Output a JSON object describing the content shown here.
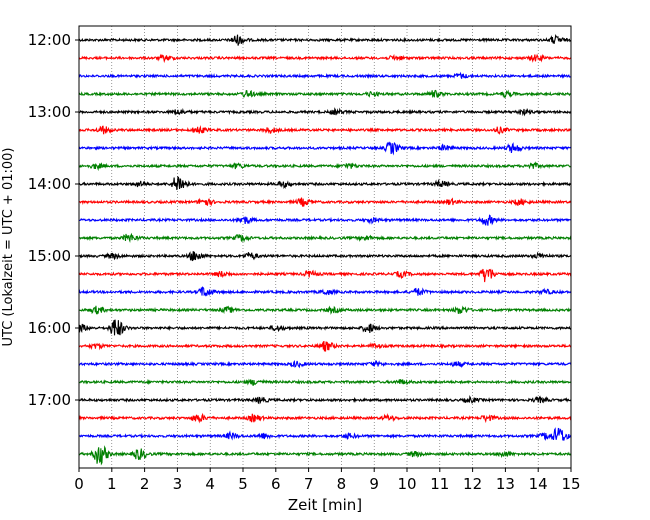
{
  "chart_data": {
    "type": "line",
    "title": "",
    "xlabel": "Zeit  [min]",
    "ylabel": "UTC (Lokalzeit = UTC + 01:00)",
    "xlim": [
      0,
      15
    ],
    "x_ticks": [
      "0",
      "1",
      "2",
      "3",
      "4",
      "5",
      "6",
      "7",
      "8",
      "9",
      "10",
      "11",
      "12",
      "13",
      "14",
      "15"
    ],
    "y_ticks": [
      "12:00",
      "13:00",
      "14:00",
      "15:00",
      "16:00",
      "17:00"
    ],
    "grid": "vertical dotted",
    "trace_interval_minutes": 15,
    "trace_colors_cycle": [
      "#000000",
      "#ff0000",
      "#0000ff",
      "#008000"
    ],
    "traces": [
      {
        "start": "12:00",
        "events": [
          [
            4.8,
            3.2
          ],
          [
            14.5,
            2.4
          ]
        ]
      },
      {
        "start": "12:15",
        "events": [
          [
            2.6,
            1.5
          ],
          [
            9.6,
            1.3
          ],
          [
            13.9,
            1.8
          ]
        ]
      },
      {
        "start": "12:30",
        "events": [
          [
            11.6,
            1.4
          ]
        ]
      },
      {
        "start": "12:45",
        "events": [
          [
            5.1,
            2.0
          ],
          [
            8.9,
            1.2
          ],
          [
            10.8,
            2.0
          ],
          [
            13.0,
            1.5
          ]
        ]
      },
      {
        "start": "13:00",
        "events": [
          [
            3.0,
            1.5
          ],
          [
            7.8,
            1.4
          ],
          [
            13.5,
            1.5
          ]
        ]
      },
      {
        "start": "13:15",
        "events": [
          [
            0.7,
            2.2
          ],
          [
            3.6,
            2.2
          ],
          [
            5.8,
            1.6
          ],
          [
            12.8,
            1.7
          ]
        ]
      },
      {
        "start": "13:30",
        "events": [
          [
            9.5,
            3.8
          ],
          [
            13.2,
            2.7
          ],
          [
            11.1,
            1.5
          ]
        ]
      },
      {
        "start": "13:45",
        "events": [
          [
            0.5,
            1.5
          ],
          [
            4.8,
            1.4
          ],
          [
            8.2,
            1.4
          ],
          [
            13.8,
            1.6
          ]
        ]
      },
      {
        "start": "14:00",
        "events": [
          [
            3.0,
            6.0
          ],
          [
            1.8,
            1.6
          ],
          [
            6.2,
            1.7
          ],
          [
            11.0,
            1.8
          ]
        ]
      },
      {
        "start": "14:15",
        "events": [
          [
            3.8,
            2.4
          ],
          [
            6.8,
            2.4
          ],
          [
            11.3,
            1.6
          ],
          [
            13.4,
            1.8
          ]
        ]
      },
      {
        "start": "14:30",
        "events": [
          [
            5.0,
            2.5
          ],
          [
            12.4,
            3.3
          ],
          [
            8.9,
            1.3
          ]
        ]
      },
      {
        "start": "14:45",
        "events": [
          [
            1.5,
            2.5
          ],
          [
            4.9,
            2.0
          ],
          [
            8.7,
            1.4
          ]
        ]
      },
      {
        "start": "15:00",
        "events": [
          [
            3.5,
            3.2
          ],
          [
            5.2,
            2.0
          ],
          [
            1.0,
            1.5
          ],
          [
            14.0,
            1.5
          ]
        ]
      },
      {
        "start": "15:15",
        "events": [
          [
            12.4,
            5.0
          ],
          [
            7.0,
            1.8
          ],
          [
            9.8,
            1.8
          ],
          [
            4.3,
            1.6
          ]
        ]
      },
      {
        "start": "15:30",
        "events": [
          [
            3.8,
            3.2
          ],
          [
            10.3,
            2.2
          ],
          [
            7.5,
            1.5
          ],
          [
            14.2,
            1.3
          ]
        ]
      },
      {
        "start": "15:45",
        "events": [
          [
            0.5,
            2.2
          ],
          [
            4.5,
            1.6
          ],
          [
            11.6,
            2.2
          ],
          [
            7.7,
            1.4
          ]
        ]
      },
      {
        "start": "16:00",
        "events": [
          [
            1.1,
            6.5
          ],
          [
            8.8,
            3.0
          ],
          [
            0.0,
            2.5
          ],
          [
            6.0,
            1.5
          ]
        ]
      },
      {
        "start": "16:15",
        "events": [
          [
            7.5,
            3.0
          ],
          [
            0.5,
            1.4
          ],
          [
            9.0,
            1.2
          ]
        ]
      },
      {
        "start": "16:30",
        "events": [
          [
            6.6,
            1.6
          ],
          [
            9.0,
            1.4
          ],
          [
            11.5,
            1.4
          ]
        ]
      },
      {
        "start": "16:45",
        "events": [
          [
            5.3,
            1.6
          ],
          [
            9.8,
            1.3
          ]
        ]
      },
      {
        "start": "17:00",
        "events": [
          [
            5.5,
            1.6
          ],
          [
            11.9,
            1.5
          ],
          [
            14.0,
            1.5
          ]
        ]
      },
      {
        "start": "17:15",
        "events": [
          [
            3.6,
            2.4
          ],
          [
            5.3,
            2.2
          ],
          [
            9.4,
            1.4
          ],
          [
            12.4,
            1.8
          ]
        ]
      },
      {
        "start": "17:30",
        "events": [
          [
            14.6,
            5.5
          ],
          [
            4.6,
            1.8
          ],
          [
            5.6,
            1.6
          ],
          [
            8.2,
            1.4
          ],
          [
            14.2,
            2.0
          ]
        ]
      },
      {
        "start": "17:45",
        "events": [
          [
            0.6,
            7.0
          ],
          [
            1.8,
            3.5
          ],
          [
            10.2,
            1.5
          ],
          [
            12.9,
            1.5
          ]
        ]
      }
    ]
  }
}
